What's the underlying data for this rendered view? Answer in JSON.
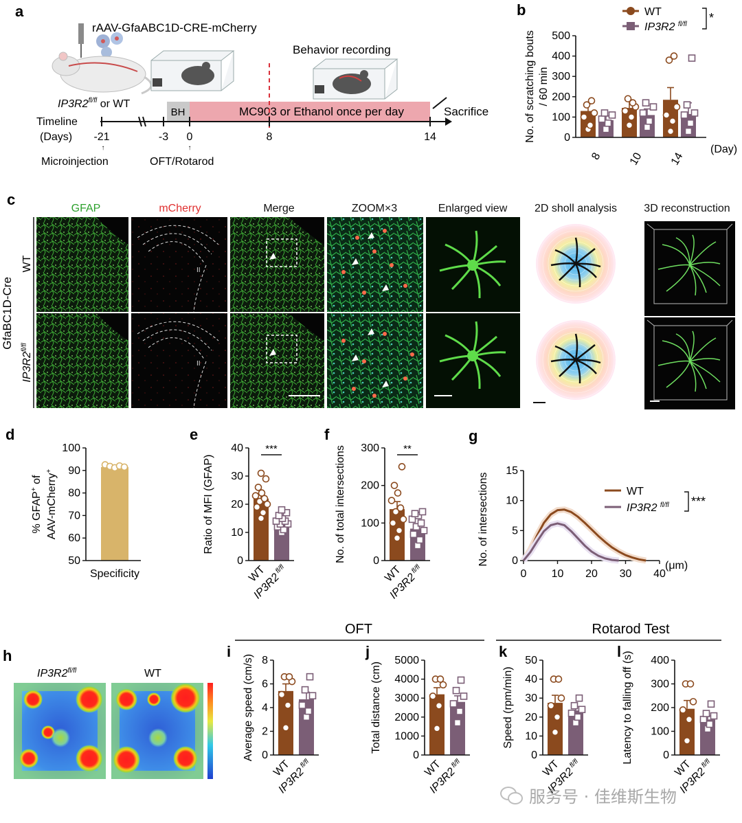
{
  "colors": {
    "wt": "#8B4A1E",
    "ko": "#7B5E76",
    "specificity": "#D8B46A",
    "green": "#49c13a",
    "red": "#ff4a4a",
    "dash": "#d9303a"
  },
  "panel_a": {
    "label": "a",
    "virus": "rAAV-GfaABC1D-CRE-mCherry",
    "behavior": "Behavior recording",
    "mice_prefix": "IP3R2",
    "mice_sup": "fl/fl",
    "mice_suffix": " or WT",
    "timeline": "Timeline",
    "days": "(Days)",
    "bh": "BH",
    "treatment": "MC903 or Ethanol once per day",
    "sacrifice": "Sacrifice",
    "ticks": [
      "-21",
      "-3",
      "0",
      "8",
      "14"
    ],
    "microinjection": "Microinjection",
    "oft": "OFT/Rotarod"
  },
  "panel_c": {
    "label": "c",
    "columns": [
      "GFAP",
      "mCherry",
      "Merge",
      "ZOOM×3",
      "Enlarged view",
      "2D sholl analysis",
      "3D reconstruction"
    ],
    "row_group": "GfaBC1D-Cre",
    "rows": [
      "WT",
      "IP3R2"
    ],
    "row_sup": "fl/fl",
    "layer": "II"
  },
  "legend_b": {
    "wt": "WT",
    "ko": "IP3R2",
    "ko_sup": "fl/fl",
    "sig": "*"
  },
  "legend_g": {
    "wt": "WT",
    "ko": "IP3R2",
    "ko_sup": "fl/fl",
    "sig": "***"
  },
  "panel_h": {
    "label": "h",
    "left": "IP3R2",
    "left_sup": "fl/fl",
    "right": "WT"
  },
  "section": {
    "oft": "OFT",
    "rotarod": "Rotarod Test"
  },
  "group_labels": {
    "wt": "WT",
    "ko": "IP3R2",
    "ko_sup": "fl/fl"
  },
  "watermark": "服务号 · 佳维斯生物",
  "chart_data": [
    {
      "id": "b",
      "type": "bar",
      "label": "b",
      "ylabel": "No. of scratching bouts / 60 min",
      "ylim": [
        0,
        500
      ],
      "yticks": [
        0,
        100,
        200,
        300,
        400,
        500
      ],
      "categories": [
        "8",
        "10",
        "14"
      ],
      "xunit": "(Day)",
      "series": [
        {
          "name": "WT",
          "values": [
            130,
            145,
            185
          ],
          "errors": [
            35,
            40,
            60
          ],
          "points": [
            [
              40,
              60,
              100,
              120,
              160,
              180
            ],
            [
              60,
              100,
              130,
              150,
              190,
              170
            ],
            [
              30,
              80,
              110,
              150,
              380,
              400
            ]
          ]
        },
        {
          "name": "IP3R2 fl/fl",
          "values": [
            85,
            110,
            115
          ],
          "errors": [
            20,
            30,
            55
          ],
          "points": [
            [
              40,
              70,
              90,
              110,
              120
            ],
            [
              50,
              80,
              120,
              150,
              170
            ],
            [
              30,
              70,
              110,
              120,
              160,
              390
            ]
          ]
        }
      ]
    },
    {
      "id": "d",
      "type": "bar",
      "label": "d",
      "ylabel": "% GFAP+ of AAV-mCherry+",
      "ylim": [
        50,
        100
      ],
      "yticks": [
        50,
        60,
        70,
        80,
        90,
        100
      ],
      "categories": [
        "Specificity"
      ],
      "series": [
        {
          "name": "",
          "values": [
            91.5
          ],
          "errors": [
            0.6
          ],
          "points": [
            [
              92.5,
              91.8,
              91.2,
              92.0,
              91.5
            ]
          ]
        }
      ]
    },
    {
      "id": "e",
      "type": "bar",
      "label": "e",
      "ylabel": "Ratio of MFI (GFAP)",
      "ylim": [
        0,
        40
      ],
      "yticks": [
        0,
        10,
        20,
        30,
        40
      ],
      "categories": [
        "WT",
        "IP3R2 fl/fl"
      ],
      "significance": "***",
      "series": [
        {
          "name": "",
          "values": [
            22,
            13.5
          ],
          "errors": [
            1.8,
            1.0
          ],
          "points": [
            [
              15,
              17,
              19,
              20,
              21,
              22,
              23,
              24,
              26,
              29,
              31
            ],
            [
              10,
              11,
              12,
              13,
              13,
              14,
              14,
              15,
              16,
              17,
              18
            ]
          ]
        }
      ]
    },
    {
      "id": "f",
      "type": "bar",
      "label": "f",
      "ylabel": "No. of total intersections",
      "ylim": [
        0,
        300
      ],
      "yticks": [
        0,
        100,
        200,
        300
      ],
      "categories": [
        "WT",
        "IP3R2 fl/fl"
      ],
      "significance": "**",
      "series": [
        {
          "name": "",
          "values": [
            137,
            85
          ],
          "errors": [
            20,
            10
          ],
          "points": [
            [
              60,
              80,
              100,
              110,
              130,
              140,
              160,
              180,
              200,
              250
            ],
            [
              40,
              55,
              70,
              80,
              90,
              100,
              110,
              120,
              125,
              130
            ]
          ]
        }
      ]
    },
    {
      "id": "g",
      "type": "line",
      "label": "g",
      "ylabel": "No. of intersections",
      "xlabel": "(μm)",
      "xlim": [
        0,
        40
      ],
      "ylim": [
        0,
        15
      ],
      "xticks": [
        0,
        10,
        20,
        30,
        40
      ],
      "yticks": [
        0,
        5,
        10,
        15
      ],
      "series": [
        {
          "name": "WT",
          "x": [
            0,
            2,
            4,
            6,
            8,
            10,
            12,
            14,
            16,
            18,
            20,
            22,
            24,
            26,
            28,
            30,
            32,
            34,
            36
          ],
          "y": [
            0,
            1.8,
            4.2,
            6.3,
            7.7,
            8.4,
            8.5,
            8.1,
            7.3,
            6.3,
            5.2,
            4.1,
            3.1,
            2.2,
            1.5,
            0.9,
            0.5,
            0.2,
            0
          ]
        },
        {
          "name": "IP3R2 fl/fl",
          "x": [
            0,
            2,
            4,
            6,
            8,
            10,
            12,
            14,
            16,
            18,
            20,
            22,
            24,
            26,
            28
          ],
          "y": [
            0,
            1.4,
            3.2,
            4.9,
            5.9,
            6.2,
            5.9,
            4.9,
            3.7,
            2.5,
            1.5,
            0.8,
            0.35,
            0.1,
            0
          ]
        }
      ]
    },
    {
      "id": "i",
      "type": "bar",
      "label": "i",
      "ylabel": "Average speed (cm/s)",
      "ylim": [
        0,
        8
      ],
      "yticks": [
        0,
        2,
        4,
        6,
        8
      ],
      "categories": [
        "WT",
        "IP3R2 fl/fl"
      ],
      "series": [
        {
          "name": "",
          "values": [
            5.4,
            4.7
          ],
          "errors": [
            0.6,
            0.6
          ],
          "points": [
            [
              2.3,
              4.2,
              5.1,
              6.2,
              6.6,
              6.6
            ],
            [
              3.2,
              3.7,
              4.2,
              5.0,
              5.5,
              6.6
            ]
          ]
        }
      ]
    },
    {
      "id": "j",
      "type": "bar",
      "label": "j",
      "ylabel": "Total distance (cm)",
      "ylim": [
        0,
        5000
      ],
      "yticks": [
        0,
        1000,
        2000,
        3000,
        4000,
        5000
      ],
      "categories": [
        "WT",
        "IP3R2 fl/fl"
      ],
      "series": [
        {
          "name": "",
          "values": [
            3200,
            2800
          ],
          "errors": [
            350,
            320
          ],
          "points": [
            [
              1400,
              2600,
              3100,
              3700,
              4000,
              4000
            ],
            [
              1700,
              2300,
              2700,
              3100,
              3400,
              3950
            ]
          ]
        }
      ]
    },
    {
      "id": "k",
      "type": "bar",
      "label": "k",
      "ylabel": "Speed (rpm/min)",
      "ylim": [
        0,
        50
      ],
      "yticks": [
        0,
        10,
        20,
        30,
        40,
        50
      ],
      "categories": [
        "WT",
        "IP3R2 fl/fl"
      ],
      "series": [
        {
          "name": "",
          "values": [
            27.5,
            23.5
          ],
          "errors": [
            4.0,
            2.0
          ],
          "points": [
            [
              12,
              20,
              26,
              30,
              40,
              40
            ],
            [
              17,
              20,
              22,
              24,
              26,
              30
            ]
          ]
        }
      ]
    },
    {
      "id": "l",
      "type": "bar",
      "label": "l",
      "ylabel": "Latency to falling off (s)",
      "ylim": [
        0,
        400
      ],
      "yticks": [
        0,
        100,
        200,
        300,
        400
      ],
      "categories": [
        "WT",
        "IP3R2 fl/fl"
      ],
      "series": [
        {
          "name": "",
          "values": [
            195,
            150
          ],
          "errors": [
            35,
            15
          ],
          "points": [
            [
              60,
              150,
              190,
              225,
              300,
              300
            ],
            [
              110,
              130,
              150,
              165,
              175,
              215
            ]
          ]
        }
      ]
    }
  ]
}
